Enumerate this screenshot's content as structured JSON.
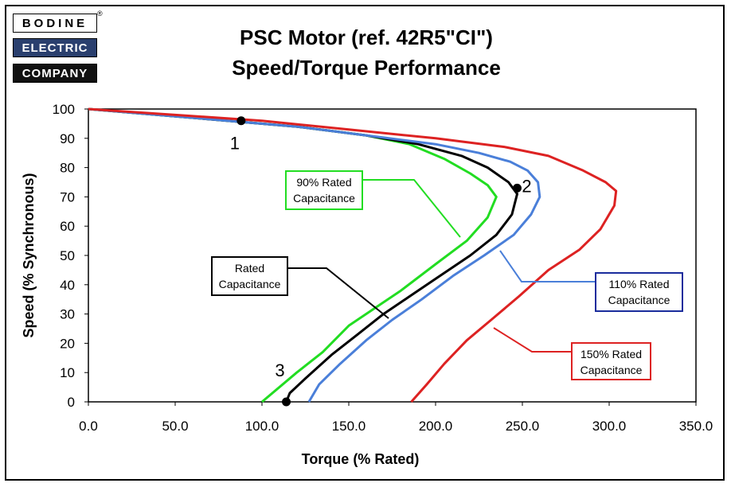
{
  "logo": {
    "line1": "BODINE",
    "line2": "ELECTRIC",
    "line3": "COMPANY",
    "reg": "®"
  },
  "title": {
    "line1": "PSC Motor (ref. 42R5\"CI\")",
    "line2": "Speed/Torque Performance"
  },
  "chart_data": {
    "type": "line",
    "xlabel": "Torque (% Rated)",
    "ylabel": "Speed (% Synchronous)",
    "xlim": [
      0,
      350
    ],
    "ylim": [
      0,
      100
    ],
    "x_ticks": [
      "0.0",
      "50.0",
      "100.0",
      "150.0",
      "200.0",
      "250.0",
      "300.0",
      "350.0"
    ],
    "y_ticks": [
      "0",
      "10",
      "20",
      "30",
      "40",
      "50",
      "60",
      "70",
      "80",
      "90",
      "100"
    ],
    "grid": false,
    "series": [
      {
        "name": "90% Rated Capacitance",
        "color": "#22dd22",
        "label_lines": [
          "90% Rated",
          "Capacitance"
        ],
        "points": [
          [
            0,
            100
          ],
          [
            40,
            98
          ],
          [
            80,
            96
          ],
          [
            120,
            94
          ],
          [
            160,
            91
          ],
          [
            185,
            88
          ],
          [
            205,
            83
          ],
          [
            220,
            78
          ],
          [
            230,
            74
          ],
          [
            235,
            70
          ],
          [
            230,
            63
          ],
          [
            218,
            55
          ],
          [
            200,
            47
          ],
          [
            180,
            38
          ],
          [
            165,
            32
          ],
          [
            150,
            26
          ],
          [
            135,
            17
          ],
          [
            120,
            10
          ],
          [
            108,
            4
          ],
          [
            100,
            0
          ]
        ]
      },
      {
        "name": "Rated Capacitance",
        "color": "#000000",
        "label_lines": [
          "Rated",
          "Capacitance"
        ],
        "points": [
          [
            0,
            100
          ],
          [
            40,
            98
          ],
          [
            80,
            96
          ],
          [
            120,
            94
          ],
          [
            160,
            91
          ],
          [
            190,
            88
          ],
          [
            215,
            84
          ],
          [
            230,
            80
          ],
          [
            242,
            75
          ],
          [
            247,
            71
          ],
          [
            244,
            64
          ],
          [
            235,
            57
          ],
          [
            220,
            50
          ],
          [
            200,
            42
          ],
          [
            185,
            36
          ],
          [
            170,
            30
          ],
          [
            155,
            23
          ],
          [
            140,
            16
          ],
          [
            125,
            8
          ],
          [
            116,
            3
          ],
          [
            114,
            0
          ]
        ]
      },
      {
        "name": "110% Rated Capacitance",
        "color": "#4a7fd9",
        "label_lines": [
          "110% Rated",
          "Capacitance"
        ],
        "points": [
          [
            0,
            100
          ],
          [
            40,
            98
          ],
          [
            80,
            96
          ],
          [
            120,
            94
          ],
          [
            160,
            91
          ],
          [
            200,
            88
          ],
          [
            225,
            85
          ],
          [
            243,
            82
          ],
          [
            253,
            79
          ],
          [
            259,
            75
          ],
          [
            260,
            70
          ],
          [
            255,
            64
          ],
          [
            245,
            57
          ],
          [
            228,
            50
          ],
          [
            210,
            43
          ],
          [
            192,
            35
          ],
          [
            175,
            28
          ],
          [
            160,
            21
          ],
          [
            145,
            13
          ],
          [
            133,
            6
          ],
          [
            127,
            0
          ]
        ]
      },
      {
        "name": "150% Rated Capacitance",
        "color": "#dd2222",
        "label_lines": [
          "150% Rated",
          "Capacitance"
        ],
        "points": [
          [
            0,
            100
          ],
          [
            50,
            98
          ],
          [
            100,
            96
          ],
          [
            150,
            93
          ],
          [
            200,
            90
          ],
          [
            240,
            87
          ],
          [
            265,
            84
          ],
          [
            285,
            79
          ],
          [
            298,
            75
          ],
          [
            304,
            72
          ],
          [
            303,
            67
          ],
          [
            295,
            59
          ],
          [
            283,
            52
          ],
          [
            265,
            45
          ],
          [
            248,
            36
          ],
          [
            232,
            28
          ],
          [
            218,
            21
          ],
          [
            205,
            13
          ],
          [
            195,
            6
          ],
          [
            186,
            0
          ]
        ]
      }
    ],
    "markers": [
      {
        "label": "1",
        "x": 88,
        "y": 96
      },
      {
        "label": "2",
        "x": 247,
        "y": 73
      },
      {
        "label": "3",
        "x": 114,
        "y": 0
      }
    ]
  }
}
